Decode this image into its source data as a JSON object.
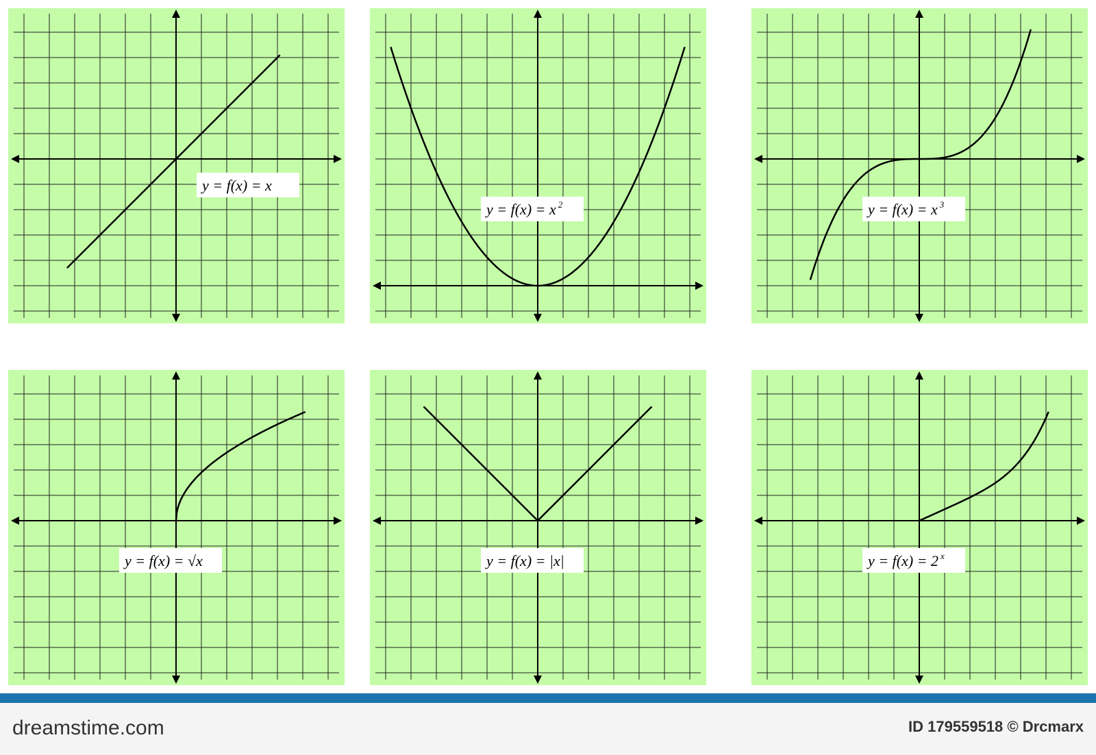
{
  "panels": [
    {
      "formula": "y = f(x) = x",
      "exponent": null
    },
    {
      "formula": "y = f(x) = x",
      "exponent": "2"
    },
    {
      "formula": "y = f(x) = x",
      "exponent": "3"
    },
    {
      "formula": "y = f(x) = √x",
      "exponent": null
    },
    {
      "formula": "y = f(x) = |x|",
      "exponent": null
    },
    {
      "formula": "y = f(x) = 2",
      "exponent": "x"
    }
  ],
  "footer": {
    "brand": "dreamstime.com",
    "id": "ID 179559518 © Drcmarx"
  }
}
